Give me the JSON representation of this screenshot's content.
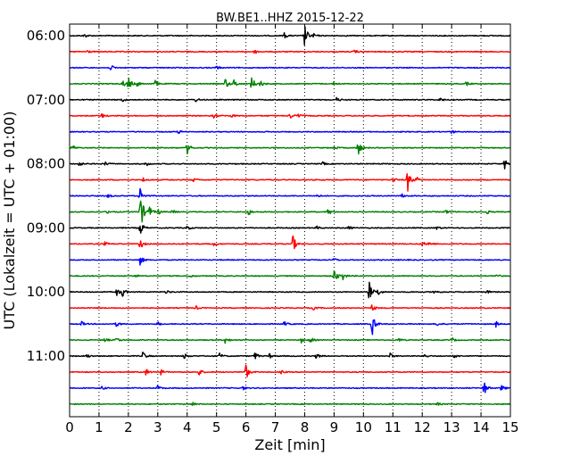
{
  "chart_data": {
    "type": "line",
    "title": "BW.BE1..HHZ 2015-12-22",
    "xlabel": "Zeit  [min]",
    "ylabel": "UTC (Lokalzeit = UTC + 01:00)",
    "xlim": [
      0,
      15
    ],
    "x_ticks": [
      0,
      1,
      2,
      3,
      4,
      5,
      6,
      7,
      8,
      9,
      10,
      11,
      12,
      13,
      14,
      15
    ],
    "x_tick_labels": [
      "0",
      "1",
      "2",
      "3",
      "4",
      "5",
      "6",
      "7",
      "8",
      "9",
      "10",
      "11",
      "12",
      "13",
      "14",
      "15"
    ],
    "y_tick_labels": [
      "06:00",
      "07:00",
      "08:00",
      "09:00",
      "10:00",
      "11:00"
    ],
    "traces_per_hour": 4,
    "minutes_per_trace": 15,
    "grid": "vertical dotted at each minute",
    "color_cycle": [
      "#000000",
      "#ff0000",
      "#0000ff",
      "#008000"
    ],
    "series": [
      {
        "start": "06:00",
        "events": [
          [
            0.5,
            0.35
          ],
          [
            7.3,
            0.5
          ],
          [
            8.0,
            1.8
          ],
          [
            8.3,
            0.3
          ]
        ]
      },
      {
        "start": "06:15",
        "events": [
          [
            0.6,
            0.3
          ],
          [
            6.3,
            0.35
          ],
          [
            9.7,
            0.3
          ]
        ]
      },
      {
        "start": "06:30",
        "events": [
          [
            1.4,
            0.45
          ],
          [
            5.0,
            0.3
          ]
        ]
      },
      {
        "start": "06:45",
        "events": [
          [
            1.8,
            0.6
          ],
          [
            2.0,
            1.1
          ],
          [
            2.3,
            0.4
          ],
          [
            2.9,
            0.6
          ],
          [
            5.3,
            0.9
          ],
          [
            5.6,
            0.7
          ],
          [
            6.2,
            1.2
          ],
          [
            6.5,
            0.5
          ],
          [
            9.0,
            0.3
          ],
          [
            13.5,
            0.3
          ]
        ]
      },
      {
        "start": "07:00",
        "events": [
          [
            1.8,
            0.35
          ],
          [
            4.3,
            0.3
          ],
          [
            9.1,
            0.4
          ],
          [
            12.6,
            0.35
          ]
        ]
      },
      {
        "start": "07:15",
        "events": [
          [
            1.1,
            0.35
          ],
          [
            4.9,
            0.4
          ],
          [
            5.5,
            0.3
          ],
          [
            7.5,
            0.45
          ],
          [
            7.8,
            0.35
          ]
        ]
      },
      {
        "start": "07:30",
        "events": [
          [
            3.7,
            0.3
          ],
          [
            13.0,
            0.3
          ]
        ]
      },
      {
        "start": "07:45",
        "events": [
          [
            0.1,
            0.45
          ],
          [
            4.0,
            1.0
          ],
          [
            9.0,
            0.3
          ],
          [
            9.8,
            1.6
          ]
        ]
      },
      {
        "start": "08:00",
        "events": [
          [
            0.3,
            0.5
          ],
          [
            1.2,
            0.35
          ],
          [
            2.6,
            0.35
          ],
          [
            8.6,
            0.3
          ],
          [
            14.8,
            0.9
          ]
        ]
      },
      {
        "start": "08:15",
        "events": [
          [
            2.5,
            0.35
          ],
          [
            4.2,
            0.35
          ],
          [
            11.0,
            0.45
          ],
          [
            11.5,
            1.9
          ],
          [
            11.8,
            0.4
          ]
        ]
      },
      {
        "start": "08:30",
        "events": [
          [
            1.3,
            0.3
          ],
          [
            2.4,
            1.5
          ],
          [
            8.4,
            0.35
          ],
          [
            11.3,
            0.3
          ]
        ]
      },
      {
        "start": "08:45",
        "events": [
          [
            1.3,
            0.3
          ],
          [
            2.4,
            3.6
          ],
          [
            2.7,
            1.0
          ],
          [
            3.0,
            0.5
          ],
          [
            3.5,
            0.35
          ],
          [
            6.1,
            0.5
          ],
          [
            8.8,
            0.5
          ],
          [
            12.8,
            0.35
          ],
          [
            14.2,
            0.3
          ]
        ]
      },
      {
        "start": "09:00",
        "events": [
          [
            2.4,
            1.3
          ],
          [
            4.0,
            0.35
          ],
          [
            8.4,
            0.3
          ],
          [
            9.5,
            0.3
          ],
          [
            12.5,
            0.3
          ]
        ]
      },
      {
        "start": "09:15",
        "events": [
          [
            1.2,
            0.3
          ],
          [
            2.4,
            0.9
          ],
          [
            4.9,
            0.35
          ],
          [
            7.6,
            1.4
          ],
          [
            12.0,
            0.35
          ],
          [
            12.2,
            0.35
          ]
        ]
      },
      {
        "start": "09:30",
        "events": [
          [
            2.4,
            0.8
          ],
          [
            9.0,
            0.3
          ]
        ]
      },
      {
        "start": "09:45",
        "events": [
          [
            2.2,
            0.35
          ],
          [
            4.1,
            0.3
          ],
          [
            9.0,
            1.3
          ],
          [
            9.3,
            0.6
          ],
          [
            14.5,
            0.3
          ]
        ]
      },
      {
        "start": "10:00",
        "events": [
          [
            1.6,
            0.6
          ],
          [
            1.8,
            0.8
          ],
          [
            3.3,
            0.3
          ],
          [
            10.2,
            1.6
          ],
          [
            10.5,
            0.6
          ],
          [
            12.4,
            0.4
          ],
          [
            14.2,
            0.3
          ]
        ]
      },
      {
        "start": "10:15",
        "events": [
          [
            4.3,
            0.3
          ],
          [
            8.3,
            0.3
          ],
          [
            10.3,
            0.5
          ]
        ]
      },
      {
        "start": "10:30",
        "events": [
          [
            0.4,
            0.4
          ],
          [
            1.6,
            0.45
          ],
          [
            3.0,
            0.3
          ],
          [
            7.3,
            0.4
          ],
          [
            10.3,
            1.8
          ],
          [
            12.5,
            0.35
          ],
          [
            14.5,
            0.5
          ]
        ]
      },
      {
        "start": "10:45",
        "events": [
          [
            1.2,
            0.35
          ],
          [
            1.6,
            0.45
          ],
          [
            5.3,
            0.6
          ],
          [
            7.9,
            0.5
          ],
          [
            8.2,
            0.45
          ],
          [
            11.2,
            0.3
          ],
          [
            13.0,
            0.4
          ]
        ]
      },
      {
        "start": "11:00",
        "events": [
          [
            0.6,
            0.35
          ],
          [
            2.5,
            0.7
          ],
          [
            3.9,
            0.5
          ],
          [
            5.1,
            0.5
          ],
          [
            6.3,
            0.7
          ],
          [
            6.8,
            0.4
          ],
          [
            8.4,
            0.45
          ],
          [
            10.9,
            0.5
          ],
          [
            12.1,
            0.35
          ],
          [
            13.1,
            0.35
          ]
        ]
      },
      {
        "start": "11:15",
        "events": [
          [
            2.6,
            0.6
          ],
          [
            3.1,
            0.45
          ],
          [
            4.4,
            0.6
          ],
          [
            6.0,
            1.2
          ],
          [
            7.2,
            0.3
          ]
        ]
      },
      {
        "start": "11:30",
        "events": [
          [
            1.1,
            0.3
          ],
          [
            3.0,
            0.4
          ],
          [
            5.9,
            0.3
          ],
          [
            14.1,
            1.2
          ],
          [
            14.7,
            0.5
          ]
        ]
      },
      {
        "start": "11:45",
        "events": [
          [
            4.2,
            0.3
          ],
          [
            12.5,
            0.3
          ]
        ]
      }
    ]
  }
}
